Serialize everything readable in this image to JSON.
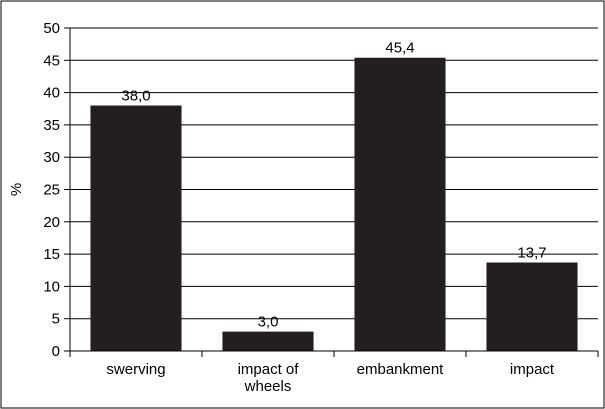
{
  "chart_data": {
    "type": "bar",
    "categories": [
      "swerving",
      "impact of wheels",
      "embankment",
      "impact"
    ],
    "category_lines": [
      [
        "swerving"
      ],
      [
        "impact of",
        "wheels"
      ],
      [
        "embankment"
      ],
      [
        "impact"
      ]
    ],
    "values": [
      38.0,
      3.0,
      45.4,
      13.7
    ],
    "data_labels": [
      "38,0",
      "3,0",
      "45,4",
      "13,7"
    ],
    "title": "",
    "xlabel": "",
    "ylabel": "%",
    "ylim": [
      0,
      50
    ],
    "yticks": [
      0,
      5,
      10,
      15,
      20,
      25,
      30,
      35,
      40,
      45,
      50
    ],
    "grid": true,
    "legend": "none",
    "bar_color": "#231f20",
    "grid_color": "#000000",
    "background": "#ffffff"
  }
}
